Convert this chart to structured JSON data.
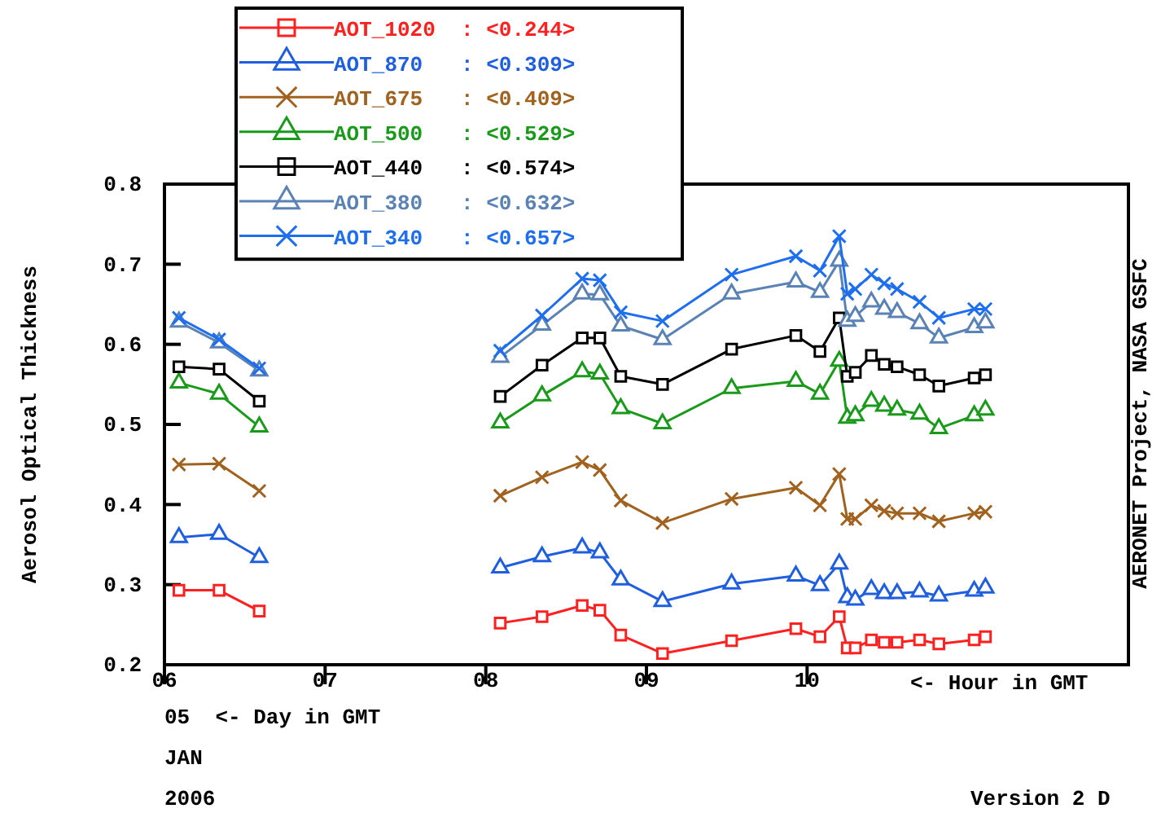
{
  "chart_data": {
    "type": "line",
    "ylabel": "Aerosol Optical Thickness",
    "xlabel": "<- Hour in GMT",
    "annotations": [
      "05  <- Day in GMT",
      "JAN",
      "2006",
      "AERONET Project, NASA GSFC",
      "Version 2 D"
    ],
    "x": [
      6.09,
      6.34,
      6.59,
      7.3,
      8.09,
      8.35,
      8.6,
      8.71,
      8.84,
      9.1,
      9.53,
      9.93,
      10.08,
      10.2,
      10.25,
      10.3,
      10.4,
      10.48,
      10.56,
      10.7,
      10.82,
      11.04,
      11.11
    ],
    "xlim": [
      6,
      12
    ],
    "xticks": [
      {
        "value": 6,
        "label": "06"
      },
      {
        "value": 7,
        "label": "07"
      },
      {
        "value": 8,
        "label": "08"
      },
      {
        "value": 9,
        "label": "09"
      },
      {
        "value": 10,
        "label": "10"
      }
    ],
    "ylim": [
      0.2,
      0.8
    ],
    "yticks": [
      {
        "value": 0.2,
        "label": "0.2"
      },
      {
        "value": 0.3,
        "label": "0.3"
      },
      {
        "value": 0.4,
        "label": "0.4"
      },
      {
        "value": 0.5,
        "label": "0.5"
      },
      {
        "value": 0.6,
        "label": "0.6"
      },
      {
        "value": 0.7,
        "label": "0.7"
      },
      {
        "value": 0.8,
        "label": "0.8"
      }
    ],
    "grid": false,
    "legend": "top",
    "line_style": "solid",
    "series": [
      {
        "name": "AOT_1020  : <0.244>",
        "color": "#ff2020",
        "marker": "square",
        "values": [
          0.293,
          0.293,
          0.267,
          null,
          0.252,
          0.26,
          0.274,
          0.268,
          0.237,
          0.214,
          0.23,
          0.245,
          0.235,
          0.26,
          0.221,
          0.221,
          0.231,
          0.228,
          0.228,
          0.231,
          0.226,
          0.231,
          0.235
        ]
      },
      {
        "name": "AOT_870   : <0.309>",
        "color": "#1f5fdf",
        "marker": "triangle",
        "values": [
          0.359,
          0.363,
          0.334,
          null,
          0.321,
          0.335,
          0.346,
          0.34,
          0.306,
          0.279,
          0.301,
          0.311,
          0.299,
          0.326,
          0.284,
          0.281,
          0.294,
          0.289,
          0.289,
          0.291,
          0.286,
          0.292,
          0.296
        ]
      },
      {
        "name": "AOT_675   : <0.409>",
        "color": "#a0621e",
        "marker": "cross",
        "values": [
          0.45,
          0.451,
          0.417,
          null,
          0.411,
          0.434,
          0.453,
          0.443,
          0.405,
          0.377,
          0.407,
          0.421,
          0.399,
          0.438,
          0.382,
          0.382,
          0.399,
          0.392,
          0.389,
          0.389,
          0.379,
          0.389,
          0.391
        ]
      },
      {
        "name": "AOT_500   : <0.529>",
        "color": "#1a9a1a",
        "marker": "triangle",
        "values": [
          0.552,
          0.538,
          0.497,
          null,
          0.502,
          0.536,
          0.566,
          0.563,
          0.52,
          0.501,
          0.545,
          0.554,
          0.538,
          0.579,
          0.508,
          0.511,
          0.529,
          0.523,
          0.518,
          0.513,
          0.495,
          0.511,
          0.518
        ]
      },
      {
        "name": "AOT_440   : <0.574>",
        "color": "#000000",
        "marker": "square",
        "values": [
          0.572,
          0.569,
          0.529,
          null,
          0.535,
          0.574,
          0.608,
          0.608,
          0.56,
          0.55,
          0.594,
          0.611,
          0.591,
          0.633,
          0.56,
          0.565,
          0.586,
          0.575,
          0.572,
          0.562,
          0.548,
          0.558,
          0.562
        ]
      },
      {
        "name": "AOT_380   : <0.632>",
        "color": "#5a82b4",
        "marker": "triangle",
        "values": [
          0.628,
          0.602,
          0.567,
          null,
          0.584,
          0.624,
          0.663,
          0.662,
          0.623,
          0.606,
          0.663,
          0.678,
          0.665,
          0.704,
          0.629,
          0.635,
          0.653,
          0.644,
          0.64,
          0.626,
          0.608,
          0.621,
          0.627
        ]
      },
      {
        "name": "AOT_340   : <0.657>",
        "color": "#1e6ef0",
        "marker": "cross",
        "values": [
          0.633,
          0.606,
          0.57,
          null,
          0.592,
          0.636,
          0.682,
          0.68,
          0.64,
          0.629,
          0.687,
          0.71,
          0.692,
          0.735,
          0.663,
          0.669,
          0.687,
          0.676,
          0.669,
          0.653,
          0.633,
          0.644,
          0.644
        ]
      }
    ]
  }
}
